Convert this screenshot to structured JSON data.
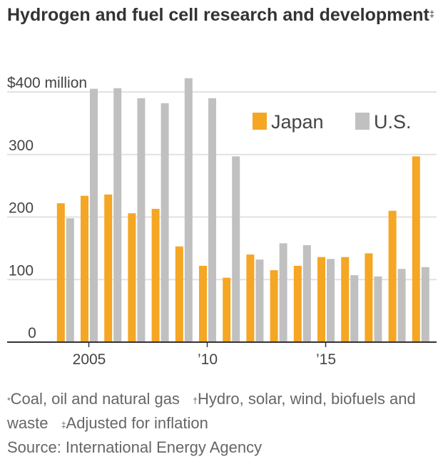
{
  "title": "Hydrogen and fuel cell research and development",
  "title_mark": "‡",
  "footnotes": [
    {
      "mark": "*",
      "text": "Coal, oil and natural gas"
    },
    {
      "mark": "†",
      "text": "Hydro, solar, wind, biofuels and waste"
    },
    {
      "mark": "‡",
      "text": "Adjusted for inflation"
    }
  ],
  "source": "Source: International Energy Agency",
  "chart_data": {
    "type": "bar",
    "categories": [
      2004,
      2005,
      2006,
      2007,
      2008,
      2009,
      2010,
      2011,
      2012,
      2013,
      2014,
      2015,
      2016,
      2017,
      2018,
      2019
    ],
    "series": [
      {
        "name": "Japan",
        "color": "#f5a623",
        "values": [
          222,
          234,
          236,
          206,
          213,
          153,
          122,
          103,
          140,
          115,
          122,
          136,
          136,
          142,
          210,
          297
        ]
      },
      {
        "name": "U.S.",
        "color": "#c0c0c0",
        "values": [
          198,
          405,
          406,
          390,
          382,
          422,
          390,
          297,
          132,
          158,
          155,
          133,
          107,
          105,
          117,
          120
        ]
      }
    ],
    "yticks": [
      {
        "v": 0,
        "label": "0"
      },
      {
        "v": 100,
        "label": "100"
      },
      {
        "v": 200,
        "label": "200"
      },
      {
        "v": 300,
        "label": "300"
      },
      {
        "v": 400,
        "label": "$400 million"
      }
    ],
    "xticks": [
      {
        "v": 2005,
        "label": "2005"
      },
      {
        "v": 2010,
        "label": "’10"
      },
      {
        "v": 2015,
        "label": "’15"
      }
    ],
    "ylim": [
      0,
      400
    ],
    "grid": true,
    "legend": "top-right"
  }
}
